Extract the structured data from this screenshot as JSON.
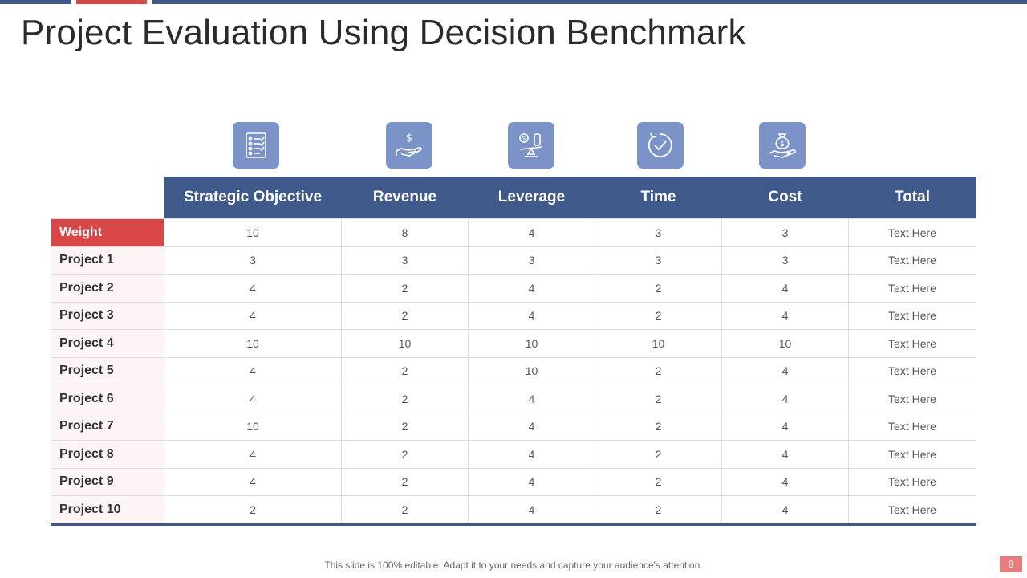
{
  "title": "Project Evaluation Using Decision Benchmark",
  "icons": [
    "checklist-icon",
    "dollar-hand-icon",
    "leverage-scale-icon",
    "clock-check-icon",
    "money-bag-hand-icon"
  ],
  "colors": {
    "primary": "#3f5a8a",
    "accent": "#d94848",
    "tile": "#7b93c6"
  },
  "table": {
    "headers": [
      "Strategic Objective",
      "Revenue",
      "Leverage",
      "Time",
      "Cost",
      "Total"
    ],
    "rows": [
      {
        "label": "Weight",
        "cells": [
          "10",
          "8",
          "4",
          "3",
          "3",
          "Text Here"
        ]
      },
      {
        "label": "Project 1",
        "cells": [
          "3",
          "3",
          "3",
          "3",
          "3",
          "Text Here"
        ]
      },
      {
        "label": "Project 2",
        "cells": [
          "4",
          "2",
          "4",
          "2",
          "4",
          "Text Here"
        ]
      },
      {
        "label": "Project 3",
        "cells": [
          "4",
          "2",
          "4",
          "2",
          "4",
          "Text Here"
        ]
      },
      {
        "label": "Project 4",
        "cells": [
          "10",
          "10",
          "10",
          "10",
          "10",
          "Text Here"
        ]
      },
      {
        "label": "Project 5",
        "cells": [
          "4",
          "2",
          "10",
          "2",
          "4",
          "Text Here"
        ]
      },
      {
        "label": "Project 6",
        "cells": [
          "4",
          "2",
          "4",
          "2",
          "4",
          "Text Here"
        ]
      },
      {
        "label": "Project 7",
        "cells": [
          "10",
          "2",
          "4",
          "2",
          "4",
          "Text Here"
        ]
      },
      {
        "label": "Project 8",
        "cells": [
          "4",
          "2",
          "4",
          "2",
          "4",
          "Text Here"
        ]
      },
      {
        "label": "Project 9",
        "cells": [
          "4",
          "2",
          "4",
          "2",
          "4",
          "Text Here"
        ]
      },
      {
        "label": "Project 10",
        "cells": [
          "2",
          "2",
          "4",
          "2",
          "4",
          "Text Here"
        ]
      }
    ]
  },
  "footer": "This slide is 100% editable. Adapt it to your needs and capture your audience's attention.",
  "page_number": "8"
}
